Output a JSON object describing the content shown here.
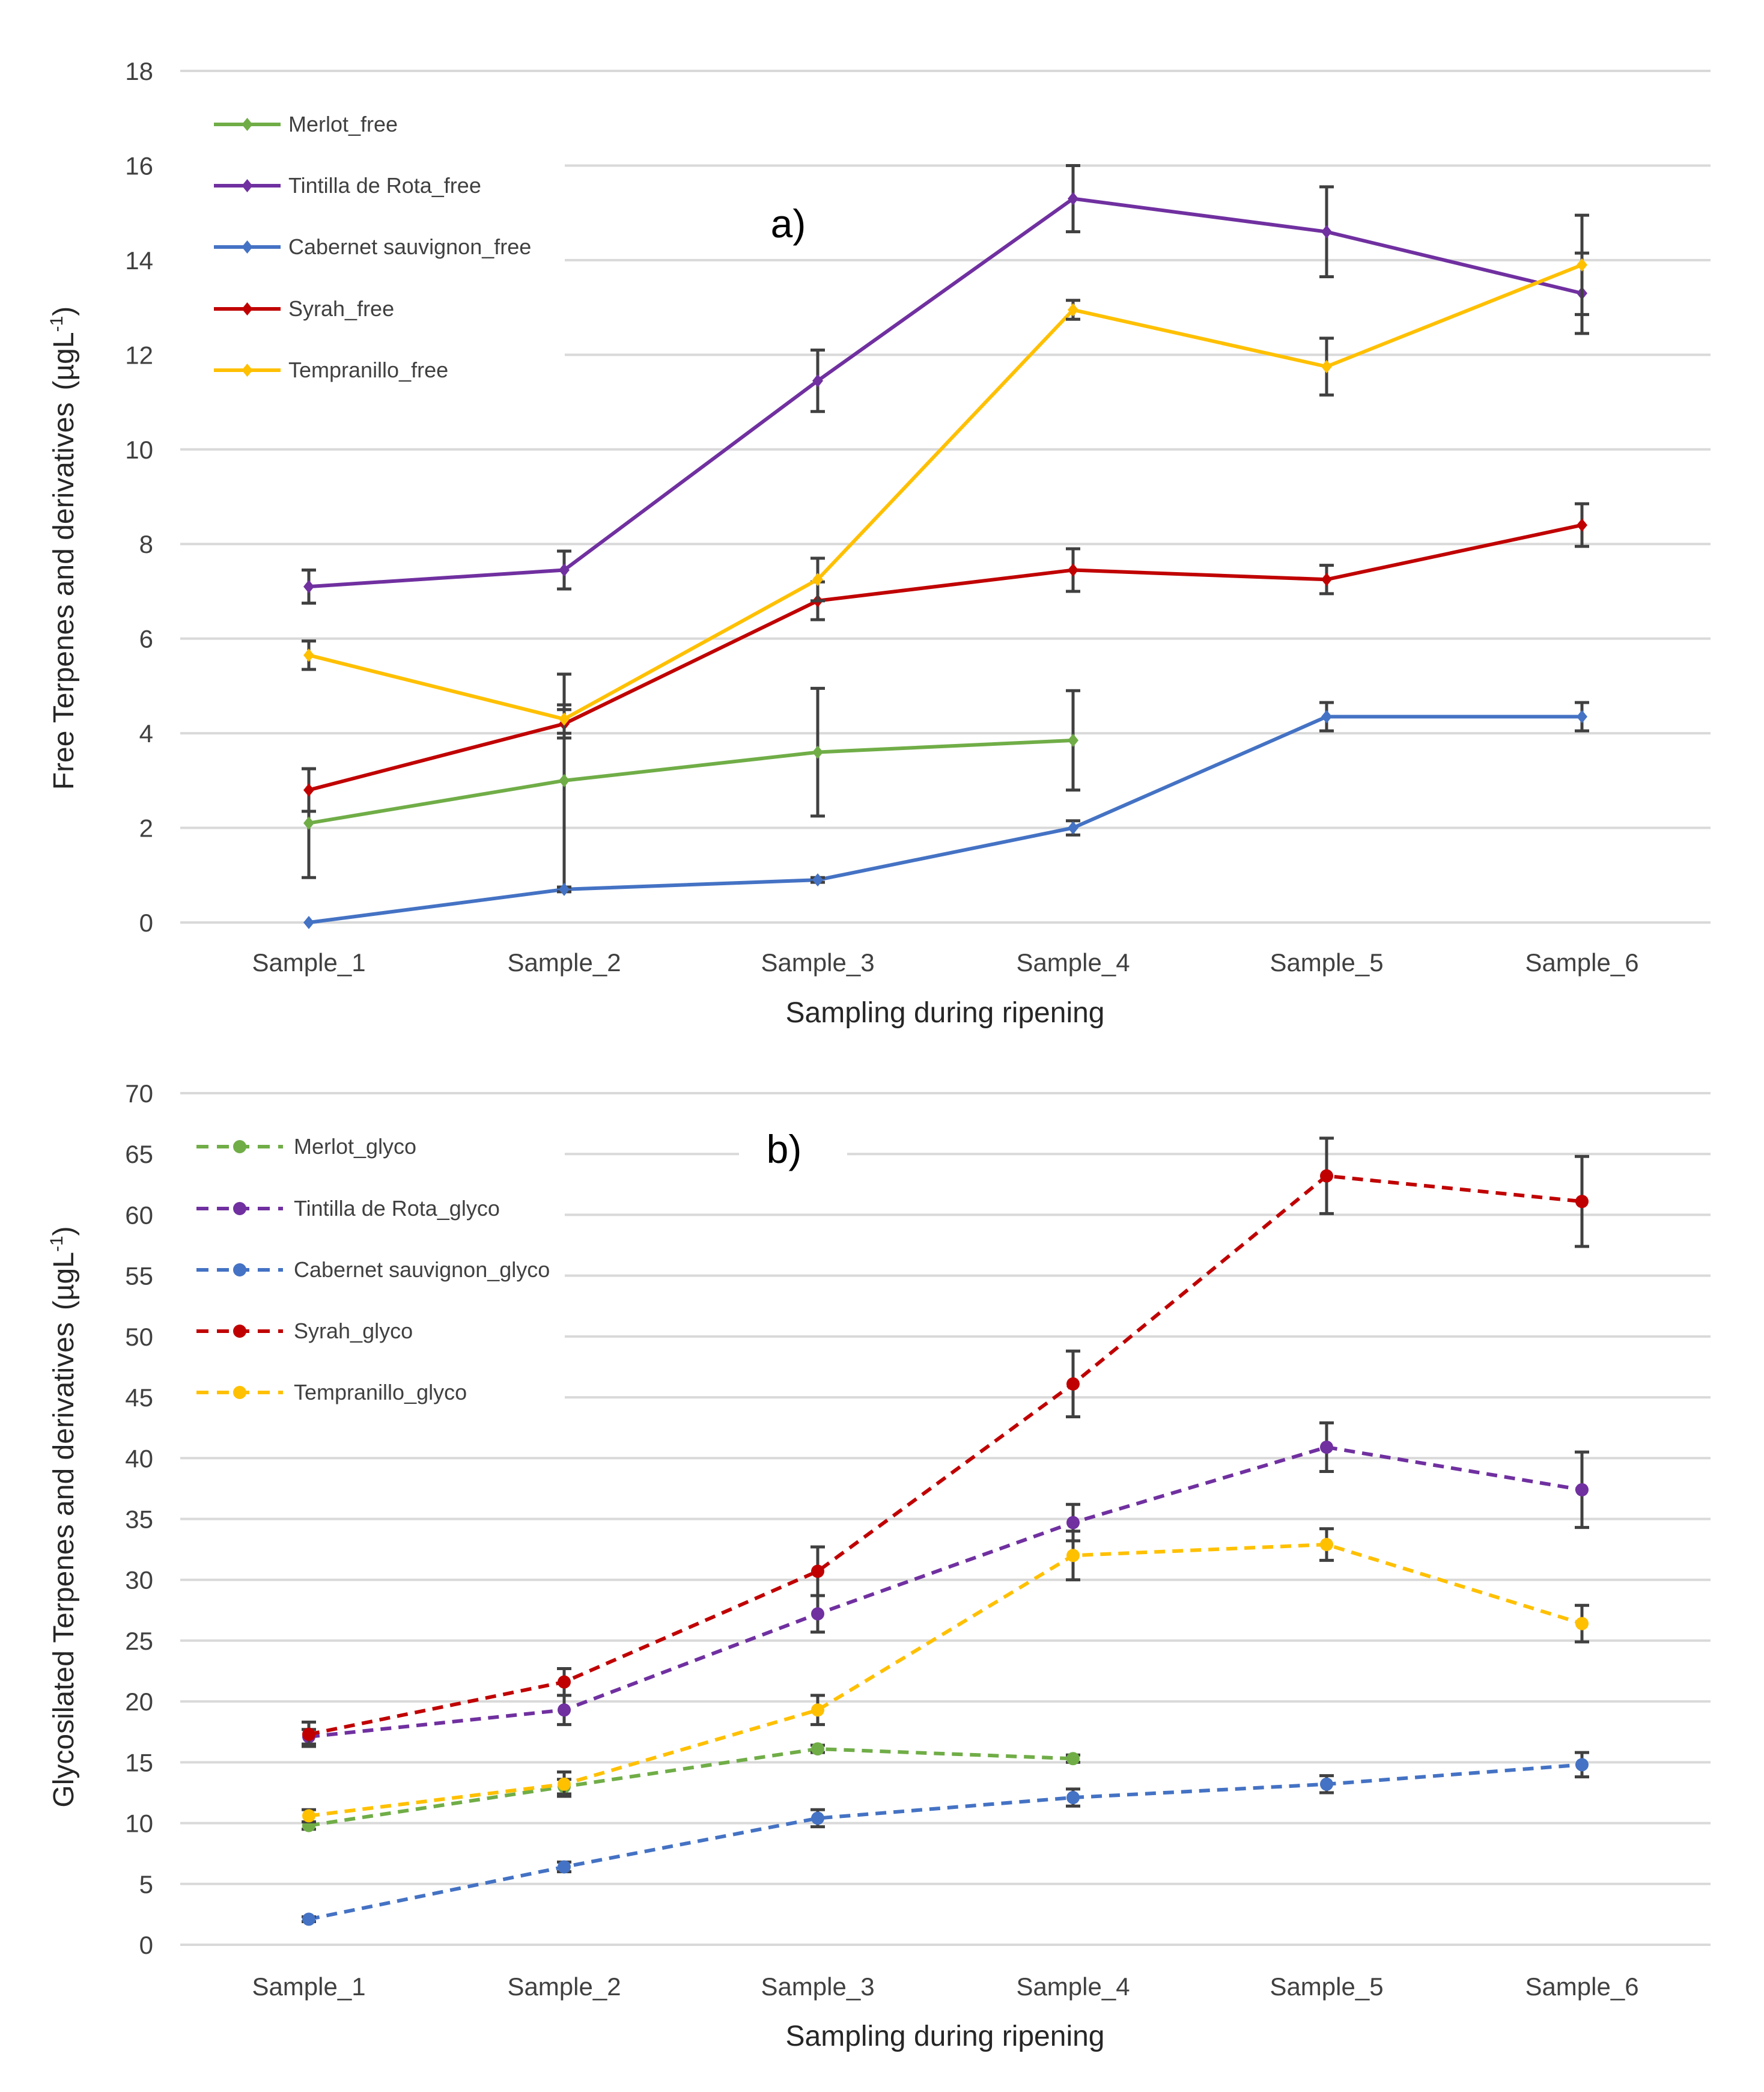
{
  "chart_data": [
    {
      "type": "line",
      "panel_label": "a)",
      "categories": [
        "Sample_1",
        "Sample_2",
        "Sample_3",
        "Sample_4",
        "Sample_5",
        "Sample_6"
      ],
      "xlabel": "Sampling during ripening",
      "ylabel": "Free Terpenes and derivatives",
      "ylabel_unit": "(µgL",
      "ylabel_sup": "-1",
      "ylabel_close": ")",
      "ylim": [
        0,
        18
      ],
      "yticks": [
        "0",
        "2",
        "4",
        "6",
        "8",
        "10",
        "12",
        "14",
        "16",
        "18"
      ],
      "ytick_values": [
        0,
        2,
        4,
        6,
        8,
        10,
        12,
        14,
        16,
        18
      ],
      "grid": true,
      "legend_position": "top-left",
      "line_style": "solid",
      "marker": "diamond",
      "series": [
        {
          "name": "Merlot_free",
          "color": "#70ad47",
          "values": [
            2.1,
            3.0,
            3.6,
            3.85,
            null,
            null
          ],
          "errors": [
            1.15,
            2.25,
            1.35,
            1.05,
            null,
            null
          ]
        },
        {
          "name": "Tintilla de Rota_free",
          "color": "#7030a0",
          "values": [
            7.1,
            7.45,
            11.45,
            15.3,
            14.6,
            13.3
          ],
          "errors": [
            0.35,
            0.4,
            0.65,
            0.7,
            0.95,
            0.85
          ]
        },
        {
          "name": "Cabernet sauvignon_free",
          "color": "#4472c4",
          "values": [
            0,
            0.7,
            0.9,
            2.0,
            4.35,
            4.35
          ],
          "errors": [
            0,
            0.05,
            0.05,
            0.15,
            0.3,
            0.3
          ]
        },
        {
          "name": "Syrah_free",
          "color": "#c00000",
          "values": [
            2.8,
            4.2,
            6.8,
            7.45,
            7.25,
            8.4
          ],
          "errors": [
            0.45,
            0.3,
            0.4,
            0.45,
            0.3,
            0.45
          ]
        },
        {
          "name": "Tempranillo_free",
          "color": "#ffc000",
          "values": [
            5.65,
            4.3,
            7.25,
            12.95,
            11.75,
            13.9
          ],
          "errors": [
            0.3,
            0.3,
            0.45,
            0.2,
            0.6,
            1.05
          ]
        }
      ]
    },
    {
      "type": "line",
      "panel_label": "b)",
      "categories": [
        "Sample_1",
        "Sample_2",
        "Sample_3",
        "Sample_4",
        "Sample_5",
        "Sample_6"
      ],
      "xlabel": "Sampling during ripening",
      "ylabel": "Glycosilated Terpenes and derivatives",
      "ylabel_unit": "(µgL",
      "ylabel_sup": "-1",
      "ylabel_close": ")",
      "ylim": [
        0,
        70
      ],
      "yticks": [
        "0",
        "5",
        "10",
        "15",
        "20",
        "25",
        "30",
        "35",
        "40",
        "45",
        "50",
        "55",
        "60",
        "65",
        "70"
      ],
      "ytick_values": [
        0,
        5,
        10,
        15,
        20,
        25,
        30,
        35,
        40,
        45,
        50,
        55,
        60,
        65,
        70
      ],
      "grid": true,
      "legend_position": "top-left",
      "line_style": "dashed",
      "marker": "circle",
      "series": [
        {
          "name": "Merlot_glyco",
          "color": "#70ad47",
          "values": [
            9.8,
            13.0,
            16.1,
            15.3,
            null,
            null
          ],
          "errors": [
            0.3,
            0.6,
            0.3,
            0.3,
            null,
            null
          ]
        },
        {
          "name": "Tintilla de Rota_glyco",
          "color": "#7030a0",
          "values": [
            17.1,
            19.3,
            27.2,
            34.7,
            40.9,
            37.4
          ],
          "errors": [
            0.6,
            1.2,
            1.5,
            1.5,
            2.0,
            3.1
          ]
        },
        {
          "name": "Cabernet sauvignon_glyco",
          "color": "#4472c4",
          "values": [
            2.1,
            6.4,
            10.4,
            12.1,
            13.2,
            14.8
          ],
          "errors": [
            0.2,
            0.4,
            0.7,
            0.7,
            0.7,
            1.0
          ]
        },
        {
          "name": "Syrah_glyco",
          "color": "#c00000",
          "values": [
            17.3,
            21.6,
            30.7,
            46.1,
            63.2,
            61.1
          ],
          "errors": [
            1.0,
            1.1,
            2.0,
            2.7,
            3.1,
            3.7
          ]
        },
        {
          "name": "Tempranillo_glyco",
          "color": "#ffc000",
          "values": [
            10.6,
            13.2,
            19.3,
            32.0,
            32.9,
            26.4
          ],
          "errors": [
            0.5,
            1.0,
            1.2,
            2.0,
            1.3,
            1.5
          ]
        }
      ]
    }
  ]
}
